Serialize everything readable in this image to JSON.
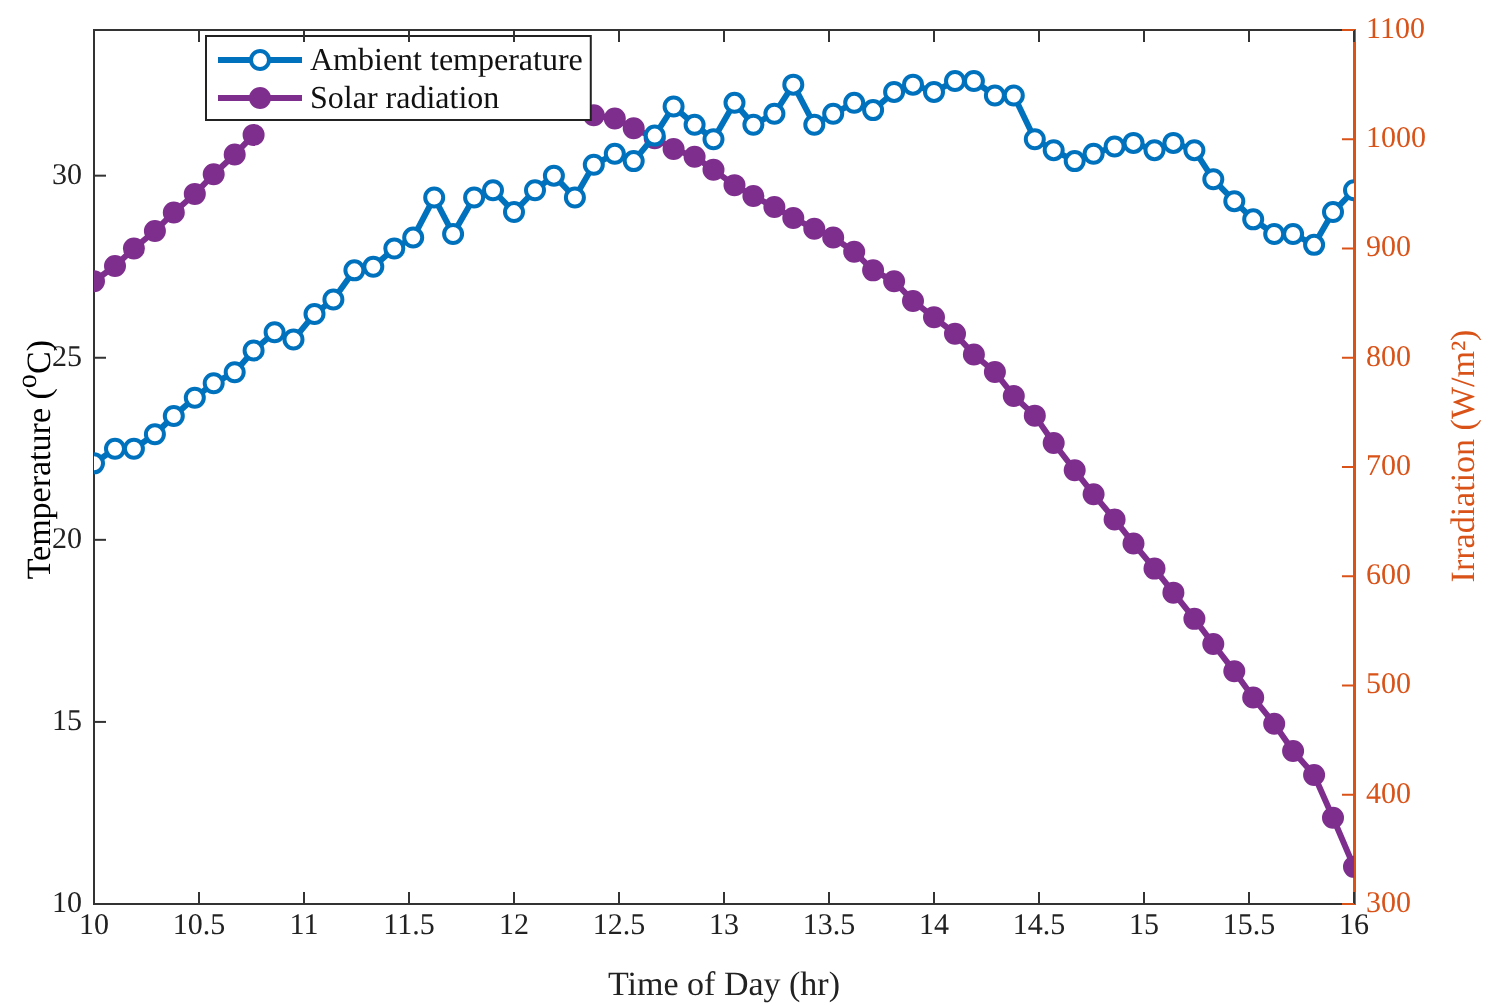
{
  "chart_data": {
    "type": "line",
    "xlabel": "Time of Day (hr)",
    "ylabel": "Temperature ($^{o}$C)",
    "y2label": "Irradiation (W/m²)",
    "x": [
      10,
      10.1,
      10.19,
      10.29,
      10.38,
      10.48,
      10.57,
      10.67,
      10.76,
      10.86,
      10.95,
      11.05,
      11.14,
      11.24,
      11.33,
      11.43,
      11.52,
      11.62,
      11.71,
      11.81,
      11.9,
      12,
      12.1,
      12.19,
      12.29,
      12.38,
      12.48,
      12.57,
      12.67,
      12.76,
      12.86,
      12.95,
      13.05,
      13.14,
      13.24,
      13.33,
      13.43,
      13.52,
      13.62,
      13.71,
      13.81,
      13.9,
      14,
      14.1,
      14.19,
      14.29,
      14.38,
      14.48,
      14.57,
      14.67,
      14.76,
      14.86,
      14.95,
      15.05,
      15.14,
      15.24,
      15.33,
      15.43,
      15.52,
      15.62,
      15.71,
      15.81,
      15.9,
      16
    ],
    "series": [
      {
        "name": "Ambient temperature",
        "color": "#0072bd",
        "axis": "y",
        "values": [
          22.1,
          22.5,
          22.5,
          22.9,
          23.4,
          23.9,
          24.3,
          24.6,
          25.2,
          25.7,
          25.5,
          26.2,
          26.6,
          27.4,
          27.5,
          28,
          28.3,
          29.4,
          28.4,
          29.4,
          29.6,
          29,
          29.6,
          30,
          29.4,
          30.3,
          30.6,
          30.4,
          31.1,
          31.9,
          31.4,
          31,
          32,
          31.4,
          31.7,
          32.5,
          31.4,
          31.7,
          32,
          31.8,
          32.3,
          32.5,
          32.3,
          32.6,
          32.6,
          32.2,
          32.2,
          31,
          30.7,
          30.4,
          30.6,
          30.8,
          30.9,
          30.7,
          30.9,
          30.7,
          29.9,
          29.3,
          28.8,
          28.4,
          28.4,
          28.1,
          29,
          29.6
        ]
      },
      {
        "name": "Solar radiation",
        "color": "#7e2f8e",
        "axis": "y2",
        "values": [
          870,
          884,
          900,
          916,
          933,
          950,
          968,
          986,
          1004,
          null,
          null,
          null,
          null,
          null,
          null,
          null,
          null,
          null,
          null,
          null,
          null,
          null,
          null,
          null,
          null,
          1022,
          1019,
          1010,
          1001,
          991,
          984,
          972,
          958,
          948,
          938,
          928,
          918,
          910,
          897,
          880,
          870,
          852,
          837,
          822,
          803,
          787,
          765,
          747,
          722,
          697,
          675,
          652,
          630,
          607,
          585,
          561,
          538,
          513,
          489,
          465,
          440,
          418,
          379,
          334
        ]
      }
    ],
    "xlim": [
      10,
      16
    ],
    "xticks": [
      10,
      10.5,
      11,
      11.5,
      12,
      12.5,
      13,
      13.5,
      14,
      14.5,
      15,
      15.5,
      16
    ],
    "ylim": [
      10,
      34
    ],
    "yticks": [
      10,
      15,
      20,
      25,
      30
    ],
    "y2lim": [
      300,
      1100
    ],
    "y2ticks": [
      300,
      400,
      500,
      600,
      700,
      800,
      900,
      1000,
      1100
    ],
    "grid": false,
    "legend": "top left",
    "marker": "circle",
    "line_style": "solid"
  }
}
